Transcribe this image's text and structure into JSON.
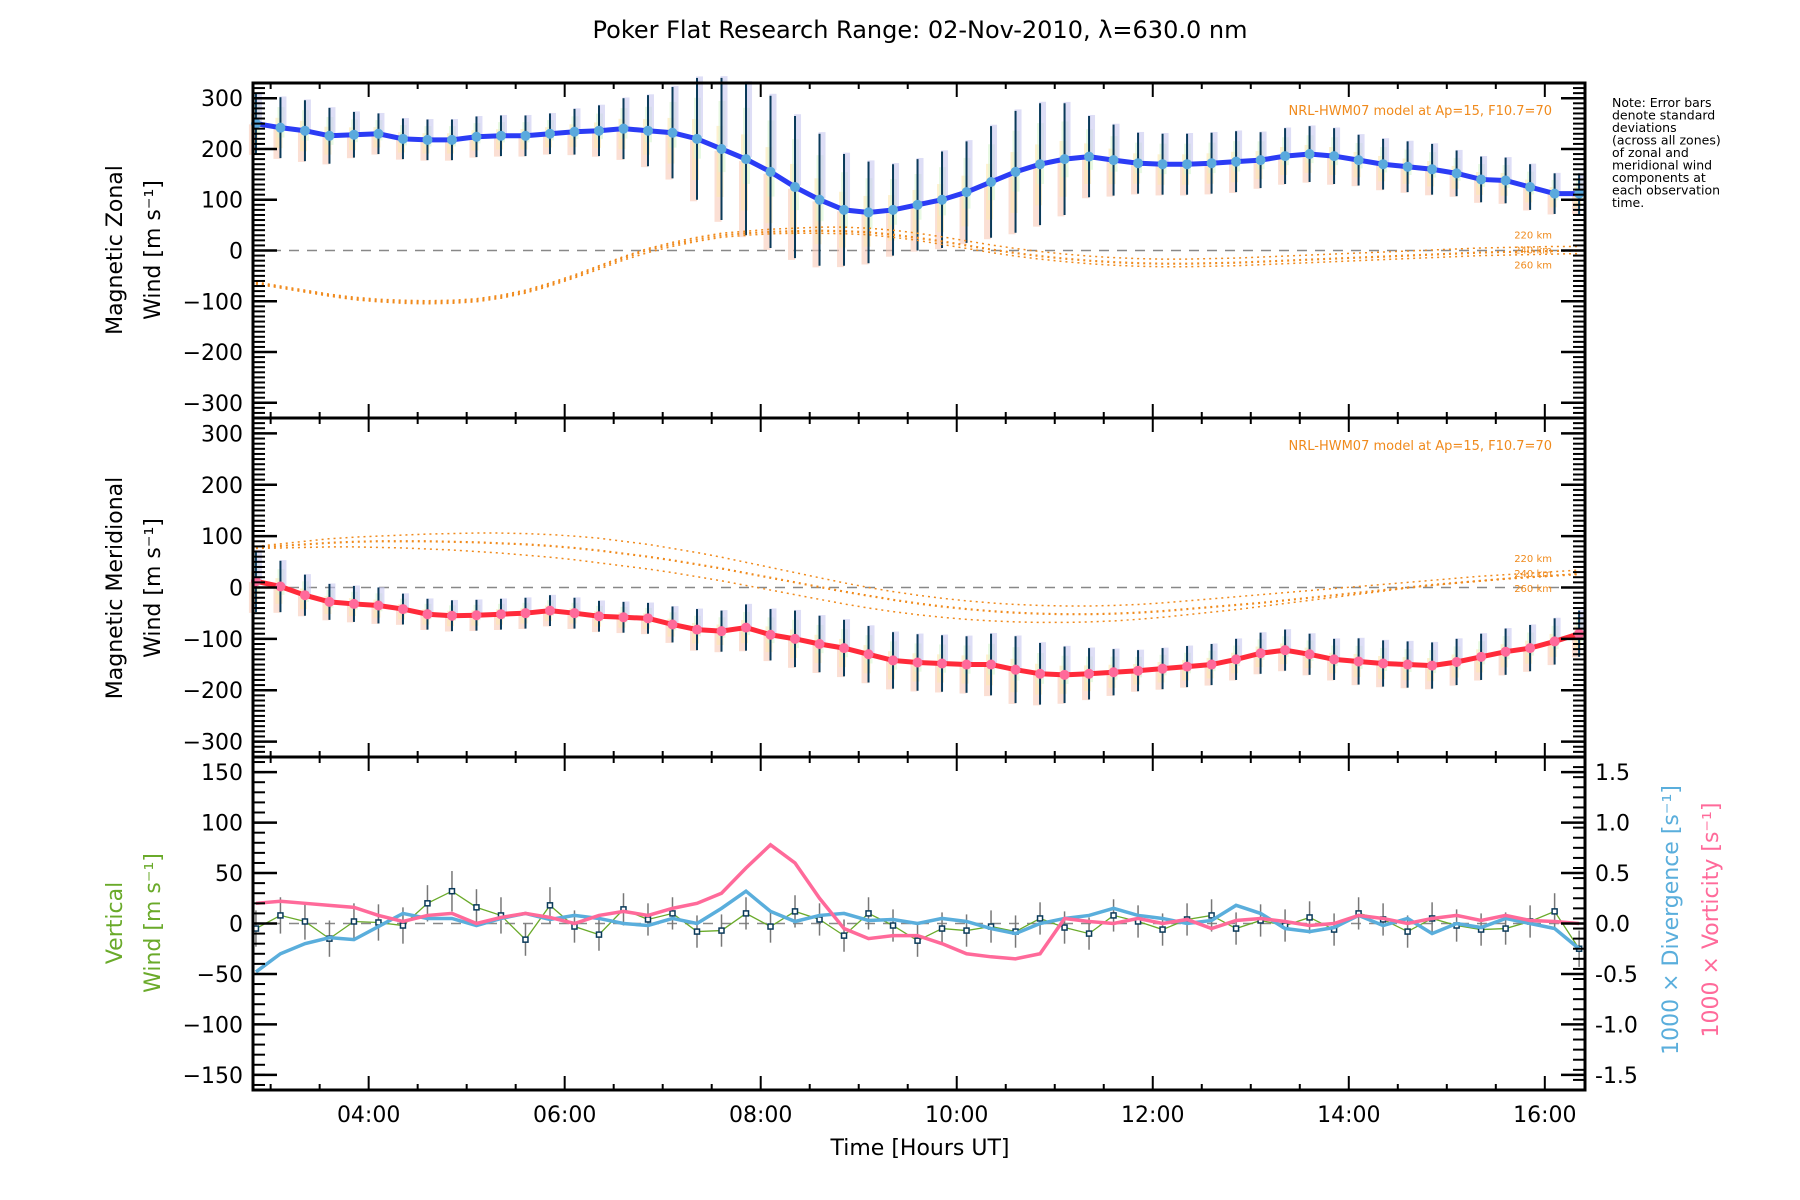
{
  "chart_data": [
    {
      "type": "line",
      "panel": "zonal",
      "title": "Poker Flat Research Range: 02-Nov-2010, λ=630.0 nm",
      "ylabel_line1": "Magnetic Zonal",
      "ylabel_line2": "Wind [m s⁻¹]",
      "ylim": [
        -330,
        330
      ],
      "yticks": [
        -300,
        -200,
        -100,
        0,
        100,
        200,
        300
      ],
      "model_note": "NRL-HWM07 model at Ap=15, F10.7=70",
      "model_altitude_labels": [
        "220 km",
        "240 km",
        "260 km"
      ],
      "colors": {
        "mean": "#2b3cf5",
        "marker": "#5aa9dd",
        "model": "#f08a1c",
        "errorbar": "#0a3a5a"
      },
      "x_hours": [
        2.85,
        3.1,
        3.35,
        3.6,
        3.85,
        4.1,
        4.35,
        4.6,
        4.85,
        5.1,
        5.35,
        5.6,
        5.85,
        6.1,
        6.35,
        6.6,
        6.85,
        7.1,
        7.35,
        7.6,
        7.85,
        8.1,
        8.35,
        8.6,
        8.85,
        9.1,
        9.35,
        9.6,
        9.85,
        10.1,
        10.35,
        10.6,
        10.85,
        11.1,
        11.35,
        11.6,
        11.85,
        12.1,
        12.35,
        12.6,
        12.85,
        13.1,
        13.35,
        13.6,
        13.85,
        14.1,
        14.35,
        14.6,
        14.85,
        15.1,
        15.35,
        15.6,
        15.85,
        16.1,
        16.35
      ],
      "series": [
        {
          "name": "Zonal mean",
          "values": [
            250,
            242,
            236,
            226,
            228,
            230,
            220,
            218,
            218,
            224,
            226,
            226,
            230,
            234,
            236,
            240,
            236,
            232,
            220,
            200,
            180,
            155,
            125,
            100,
            80,
            75,
            80,
            90,
            100,
            115,
            135,
            155,
            170,
            180,
            185,
            178,
            172,
            170,
            170,
            172,
            175,
            178,
            186,
            190,
            186,
            178,
            170,
            165,
            160,
            152,
            140,
            138,
            125,
            112,
            112
          ]
        },
        {
          "name": "Zonal std",
          "values": [
            60,
            60,
            60,
            55,
            45,
            40,
            40,
            40,
            40,
            40,
            40,
            40,
            40,
            45,
            50,
            60,
            70,
            90,
            120,
            140,
            150,
            150,
            140,
            130,
            110,
            100,
            90,
            90,
            95,
            100,
            110,
            120,
            120,
            110,
            80,
            70,
            60,
            60,
            60,
            60,
            60,
            55,
            55,
            55,
            55,
            50,
            50,
            50,
            50,
            45,
            45,
            45,
            45,
            40,
            40
          ]
        },
        {
          "name": "HWM07 220 km",
          "values": [
            -62,
            -70,
            -78,
            -86,
            -92,
            -96,
            -98,
            -99,
            -98,
            -95,
            -88,
            -78,
            -64,
            -48,
            -30,
            -12,
            4,
            16,
            26,
            34,
            38,
            42,
            44,
            46,
            46,
            44,
            40,
            34,
            27,
            19,
            11,
            4,
            -2,
            -7,
            -11,
            -14,
            -16,
            -17,
            -17,
            -16,
            -15,
            -13,
            -11,
            -9,
            -7,
            -5,
            -3,
            -1,
            1,
            3,
            5,
            6,
            7,
            8,
            8
          ]
        },
        {
          "name": "HWM07 240 km",
          "values": [
            -64,
            -72,
            -80,
            -88,
            -95,
            -99,
            -101,
            -102,
            -101,
            -98,
            -91,
            -81,
            -67,
            -51,
            -33,
            -15,
            1,
            12,
            22,
            30,
            34,
            37,
            38,
            39,
            38,
            36,
            31,
            25,
            18,
            10,
            2,
            -5,
            -11,
            -16,
            -20,
            -23,
            -25,
            -26,
            -26,
            -25,
            -24,
            -22,
            -20,
            -18,
            -16,
            -14,
            -12,
            -10,
            -8,
            -6,
            -4,
            -3,
            -2,
            -1,
            0
          ]
        },
        {
          "name": "HWM07 260 km",
          "values": [
            -66,
            -74,
            -82,
            -90,
            -97,
            -101,
            -104,
            -105,
            -104,
            -101,
            -94,
            -84,
            -70,
            -54,
            -37,
            -19,
            -4,
            8,
            18,
            26,
            30,
            33,
            34,
            34,
            33,
            31,
            26,
            20,
            12,
            4,
            -4,
            -11,
            -17,
            -22,
            -26,
            -29,
            -31,
            -32,
            -32,
            -31,
            -30,
            -28,
            -26,
            -24,
            -22,
            -20,
            -18,
            -16,
            -14,
            -12,
            -10,
            -9,
            -8,
            -7,
            -6
          ]
        }
      ]
    },
    {
      "type": "line",
      "panel": "meridional",
      "ylabel_line1": "Magnetic Meridional",
      "ylabel_line2": "Wind [m s⁻¹]",
      "ylim": [
        -330,
        330
      ],
      "yticks": [
        -300,
        -200,
        -100,
        0,
        100,
        200,
        300
      ],
      "model_note": "NRL-HWM07 model at Ap=15, F10.7=70",
      "model_altitude_labels": [
        "220 km",
        "240 km",
        "260 km"
      ],
      "colors": {
        "mean": "#ff2a3a",
        "marker": "#ff6a9a",
        "model": "#f08a1c",
        "errorbar": "#0a3a5a"
      },
      "x_hours": [
        2.85,
        3.1,
        3.35,
        3.6,
        3.85,
        4.1,
        4.35,
        4.6,
        4.85,
        5.1,
        5.35,
        5.6,
        5.85,
        6.1,
        6.35,
        6.6,
        6.85,
        7.1,
        7.35,
        7.6,
        7.85,
        8.1,
        8.35,
        8.6,
        8.85,
        9.1,
        9.35,
        9.6,
        9.85,
        10.1,
        10.35,
        10.6,
        10.85,
        11.1,
        11.35,
        11.6,
        11.85,
        12.1,
        12.35,
        12.6,
        12.85,
        13.1,
        13.35,
        13.6,
        13.85,
        14.1,
        14.35,
        14.6,
        14.85,
        15.1,
        15.35,
        15.6,
        15.85,
        16.1,
        16.35
      ],
      "series": [
        {
          "name": "Meridional mean",
          "values": [
            12,
            2,
            -15,
            -28,
            -32,
            -35,
            -42,
            -52,
            -55,
            -54,
            -52,
            -50,
            -45,
            -50,
            -56,
            -58,
            -60,
            -72,
            -82,
            -85,
            -78,
            -92,
            -100,
            -110,
            -118,
            -130,
            -142,
            -146,
            -148,
            -150,
            -150,
            -160,
            -168,
            -170,
            -168,
            -165,
            -162,
            -158,
            -154,
            -150,
            -140,
            -128,
            -122,
            -130,
            -140,
            -144,
            -148,
            -150,
            -152,
            -145,
            -135,
            -125,
            -118,
            -105,
            -90
          ]
        },
        {
          "name": "Meridional std",
          "values": [
            60,
            50,
            40,
            35,
            35,
            35,
            30,
            30,
            30,
            30,
            30,
            30,
            30,
            30,
            30,
            30,
            30,
            35,
            40,
            40,
            45,
            50,
            55,
            55,
            55,
            55,
            55,
            55,
            55,
            55,
            60,
            65,
            60,
            55,
            50,
            45,
            40,
            40,
            40,
            40,
            40,
            40,
            40,
            40,
            40,
            45,
            45,
            45,
            45,
            45,
            45,
            45,
            45,
            45,
            45
          ]
        },
        {
          "name": "HWM07 220 km",
          "values": [
            80,
            85,
            90,
            95,
            98,
            100,
            102,
            104,
            105,
            106,
            106,
            105,
            103,
            100,
            96,
            90,
            84,
            76,
            68,
            59,
            49,
            39,
            29,
            19,
            9,
            0,
            -8,
            -15,
            -21,
            -26,
            -30,
            -33,
            -35,
            -36,
            -36,
            -35,
            -33,
            -30,
            -26,
            -22,
            -18,
            -14,
            -10,
            -6,
            -2,
            2,
            6,
            10,
            14,
            18,
            22,
            25,
            28,
            31,
            34
          ]
        },
        {
          "name": "HWM07 240 km",
          "values": [
            78,
            81,
            84,
            87,
            89,
            90,
            90,
            90,
            89,
            88,
            86,
            84,
            81,
            77,
            72,
            66,
            60,
            53,
            45,
            37,
            28,
            19,
            10,
            1,
            -8,
            -16,
            -24,
            -31,
            -37,
            -42,
            -46,
            -49,
            -51,
            -52,
            -52,
            -51,
            -49,
            -46,
            -42,
            -38,
            -34,
            -30,
            -25,
            -20,
            -15,
            -10,
            -5,
            0,
            5,
            9,
            13,
            17,
            20,
            23,
            26
          ]
        },
        {
          "name": "HWM07 260 km",
          "values": [
            76,
            77,
            78,
            79,
            79,
            78,
            77,
            75,
            73,
            70,
            67,
            63,
            59,
            54,
            48,
            42,
            36,
            29,
            21,
            13,
            4,
            -5,
            -14,
            -23,
            -32,
            -40,
            -47,
            -53,
            -58,
            -62,
            -65,
            -67,
            -68,
            -68,
            -67,
            -65,
            -62,
            -58,
            -53,
            -48,
            -43,
            -37,
            -31,
            -25,
            -19,
            -13,
            -7,
            -1,
            4,
            9,
            13,
            17,
            21,
            24,
            27
          ]
        }
      ]
    },
    {
      "type": "line",
      "panel": "vertical",
      "xlabel": "Time [Hours UT]",
      "xticks": [
        "04:00",
        "06:00",
        "08:00",
        "10:00",
        "12:00",
        "14:00",
        "16:00"
      ],
      "xtick_hours": [
        4,
        6,
        8,
        10,
        12,
        14,
        16
      ],
      "xlim_hours": [
        2.82,
        16.41
      ],
      "ylabel_line1": "Vertical",
      "ylabel_line2": "Wind [m s⁻¹]",
      "ylim": [
        -165,
        165
      ],
      "yticks": [
        -150,
        -100,
        -50,
        0,
        50,
        100,
        150
      ],
      "y2label_div": "1000 × Divergence [s⁻¹]",
      "y2label_vort": "1000 × Vorticity [s⁻¹]",
      "y2lim": [
        -1.65,
        1.65
      ],
      "y2ticks": [
        "-1.5",
        "-1.0",
        "-0.5",
        "0.0",
        "0.5",
        "1.0",
        "1.5"
      ],
      "y2tick_values": [
        -1.5,
        -1.0,
        -0.5,
        0.0,
        0.5,
        1.0,
        1.5
      ],
      "colors": {
        "vertical": "#6aaa2a",
        "divergence": "#5aaedc",
        "vorticity": "#ff6a9a",
        "errorbar": "#777777",
        "marker": "#0a3a5a"
      },
      "x_hours": [
        2.85,
        3.1,
        3.35,
        3.6,
        3.85,
        4.1,
        4.35,
        4.6,
        4.85,
        5.1,
        5.35,
        5.6,
        5.85,
        6.1,
        6.35,
        6.6,
        6.85,
        7.1,
        7.35,
        7.6,
        7.85,
        8.1,
        8.35,
        8.6,
        8.85,
        9.1,
        9.35,
        9.6,
        9.85,
        10.1,
        10.35,
        10.6,
        10.85,
        11.1,
        11.35,
        11.6,
        11.85,
        12.1,
        12.35,
        12.6,
        12.85,
        13.1,
        13.35,
        13.6,
        13.85,
        14.1,
        14.35,
        14.6,
        14.85,
        15.1,
        15.35,
        15.6,
        15.85,
        16.1,
        16.35
      ],
      "series": [
        {
          "name": "Vertical wind",
          "axis": "left",
          "values": [
            -5,
            8,
            2,
            -15,
            2,
            1,
            -2,
            20,
            32,
            16,
            8,
            -16,
            18,
            -3,
            -11,
            14,
            4,
            10,
            -8,
            -7,
            10,
            -3,
            12,
            4,
            -12,
            10,
            -2,
            -17,
            -5,
            -7,
            -3,
            -8,
            5,
            -4,
            -10,
            8,
            2,
            -6,
            4,
            8,
            -5,
            3,
            -2,
            6,
            -6,
            10,
            4,
            -8,
            5,
            -2,
            -6,
            -5,
            2,
            12,
            -25
          ]
        },
        {
          "name": "Vertical std",
          "axis": "left",
          "values": [
            18,
            18,
            18,
            18,
            18,
            18,
            18,
            18,
            20,
            18,
            18,
            16,
            18,
            16,
            16,
            16,
            16,
            16,
            16,
            16,
            16,
            16,
            16,
            16,
            16,
            16,
            16,
            16,
            16,
            16,
            16,
            16,
            16,
            16,
            16,
            16,
            16,
            16,
            16,
            16,
            16,
            16,
            16,
            16,
            16,
            16,
            16,
            16,
            16,
            16,
            16,
            16,
            16,
            18,
            18
          ]
        },
        {
          "name": "1000 x Divergence",
          "axis": "right",
          "values": [
            -0.48,
            -0.3,
            -0.2,
            -0.14,
            -0.16,
            -0.03,
            0.1,
            0.05,
            0.05,
            -0.02,
            0.05,
            0.1,
            0.04,
            0.08,
            0.05,
            0.0,
            -0.02,
            0.05,
            0.0,
            0.15,
            0.32,
            0.12,
            0.02,
            0.08,
            0.1,
            0.03,
            0.04,
            0.0,
            0.05,
            0.02,
            -0.05,
            -0.1,
            0.0,
            0.05,
            0.08,
            0.15,
            0.08,
            0.05,
            0.0,
            0.03,
            0.18,
            0.1,
            -0.05,
            -0.08,
            -0.04,
            0.08,
            -0.02,
            0.05,
            -0.1,
            0.0,
            -0.04,
            0.05,
            0.0,
            -0.05,
            -0.25
          ]
        },
        {
          "name": "1000 x Vorticity",
          "axis": "right",
          "values": [
            0.2,
            0.22,
            0.2,
            0.18,
            0.16,
            0.08,
            0.02,
            0.08,
            0.1,
            0.0,
            0.06,
            0.1,
            0.06,
            0.0,
            0.08,
            0.12,
            0.08,
            0.15,
            0.2,
            0.3,
            0.55,
            0.78,
            0.6,
            0.25,
            -0.05,
            -0.15,
            -0.12,
            -0.12,
            -0.2,
            -0.3,
            -0.33,
            -0.35,
            -0.3,
            0.05,
            0.02,
            0.0,
            0.05,
            0.0,
            0.04,
            -0.05,
            0.03,
            0.05,
            0.02,
            -0.02,
            0.0,
            0.08,
            0.05,
            0.0,
            0.05,
            0.08,
            0.03,
            0.08,
            0.03,
            0.02,
            0.0
          ]
        }
      ]
    }
  ],
  "note_lines": [
    "Note: Error bars",
    "denote standard",
    "deviations",
    "(across all zones)",
    "of zonal and",
    "meridional wind",
    "components at",
    "each observation",
    "time."
  ]
}
